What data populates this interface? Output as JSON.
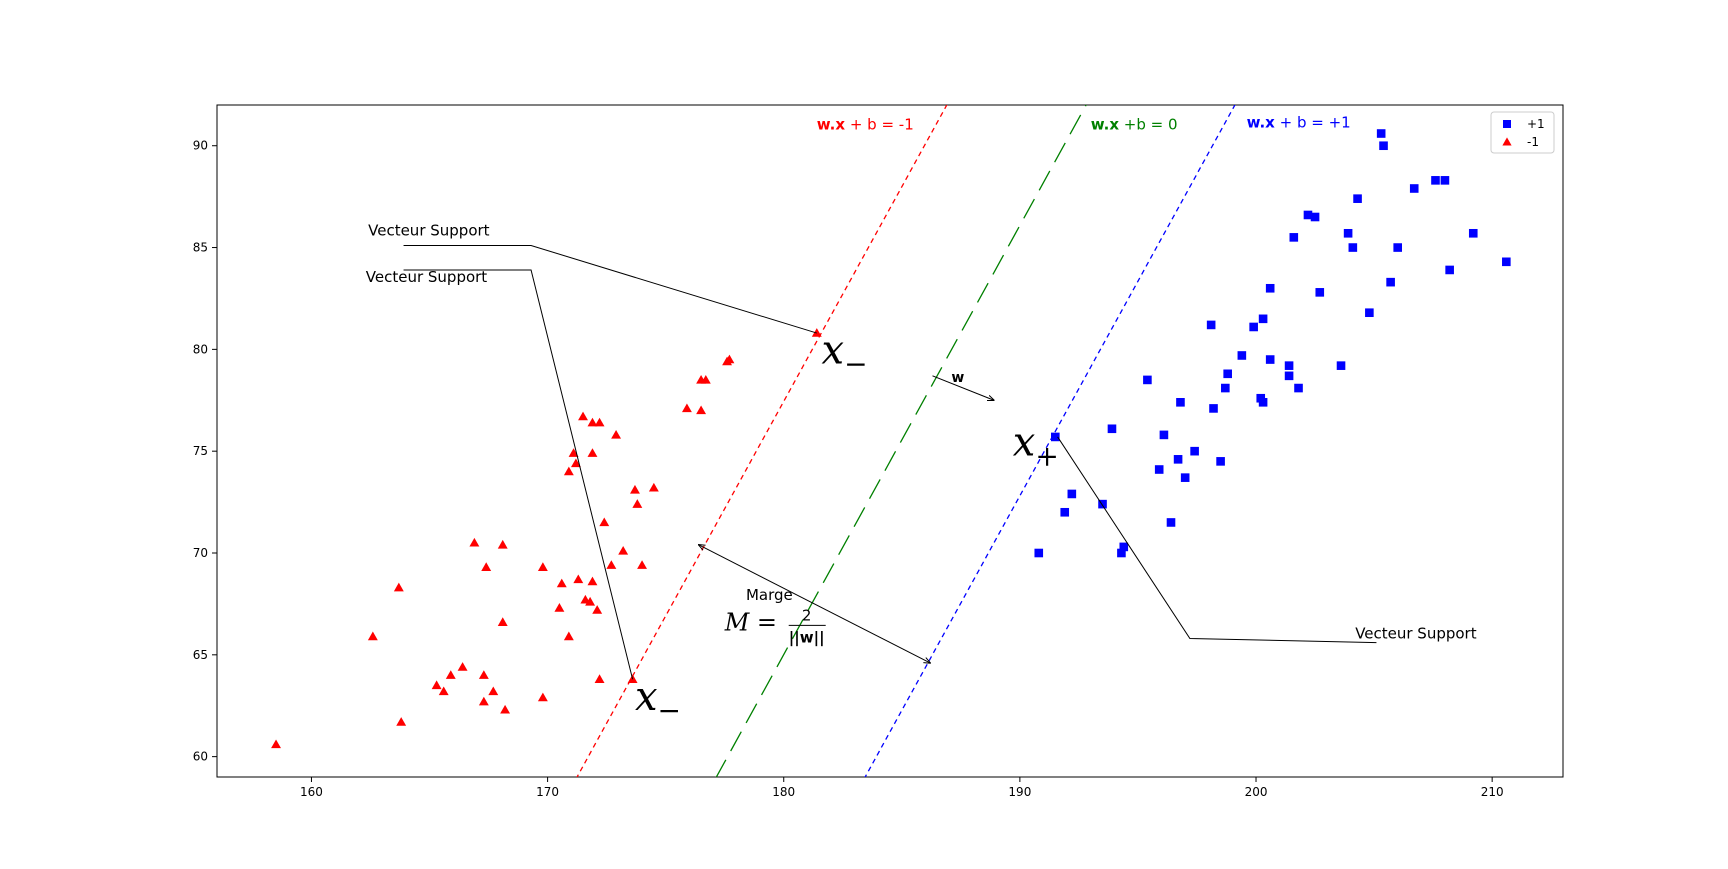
{
  "chart_data": {
    "type": "scatter",
    "title": "",
    "xlabel": "",
    "ylabel": "",
    "xlim": [
      156,
      213
    ],
    "ylim": [
      59,
      92
    ],
    "x_ticks": [
      160,
      170,
      180,
      190,
      200,
      210
    ],
    "y_ticks": [
      60,
      65,
      70,
      75,
      80,
      85,
      90
    ],
    "grid": false,
    "legend": {
      "placement": "top-right"
    },
    "series": [
      {
        "name": "+1",
        "marker": "square",
        "color": "#0000ff",
        "points": [
          [
            190.8,
            70.0
          ],
          [
            191.5,
            75.7
          ],
          [
            191.9,
            72.0
          ],
          [
            192.2,
            72.9
          ],
          [
            193.5,
            72.4
          ],
          [
            193.9,
            76.1
          ],
          [
            194.3,
            70.0
          ],
          [
            194.4,
            70.3
          ],
          [
            195.4,
            78.5
          ],
          [
            195.9,
            74.1
          ],
          [
            196.1,
            75.8
          ],
          [
            196.4,
            71.5
          ],
          [
            196.7,
            74.6
          ],
          [
            196.8,
            77.4
          ],
          [
            197.0,
            73.7
          ],
          [
            197.4,
            75.0
          ],
          [
            198.1,
            81.2
          ],
          [
            198.2,
            77.1
          ],
          [
            198.5,
            74.5
          ],
          [
            198.7,
            78.1
          ],
          [
            198.8,
            78.8
          ],
          [
            199.4,
            79.7
          ],
          [
            199.9,
            81.1
          ],
          [
            200.2,
            77.6
          ],
          [
            200.3,
            77.4
          ],
          [
            200.3,
            81.5
          ],
          [
            200.6,
            79.5
          ],
          [
            200.6,
            83.0
          ],
          [
            201.4,
            78.7
          ],
          [
            201.4,
            79.2
          ],
          [
            201.6,
            85.5
          ],
          [
            201.8,
            78.1
          ],
          [
            202.2,
            86.6
          ],
          [
            202.5,
            86.5
          ],
          [
            202.7,
            82.8
          ],
          [
            203.6,
            79.2
          ],
          [
            203.9,
            85.7
          ],
          [
            204.1,
            85.0
          ],
          [
            204.3,
            87.4
          ],
          [
            204.8,
            81.8
          ],
          [
            205.3,
            90.6
          ],
          [
            205.4,
            90.0
          ],
          [
            205.7,
            83.3
          ],
          [
            206.0,
            85.0
          ],
          [
            206.7,
            87.9
          ],
          [
            207.6,
            88.3
          ],
          [
            208.0,
            88.3
          ],
          [
            208.2,
            83.9
          ],
          [
            209.2,
            85.7
          ],
          [
            210.6,
            84.3
          ]
        ]
      },
      {
        "name": "-1",
        "marker": "triangle",
        "color": "#ff0000",
        "points": [
          [
            158.5,
            60.6
          ],
          [
            162.6,
            65.9
          ],
          [
            163.7,
            68.3
          ],
          [
            163.8,
            61.7
          ],
          [
            165.3,
            63.5
          ],
          [
            165.6,
            63.2
          ],
          [
            165.9,
            64.0
          ],
          [
            166.4,
            64.4
          ],
          [
            166.9,
            70.5
          ],
          [
            167.3,
            62.7
          ],
          [
            167.3,
            64.0
          ],
          [
            167.4,
            69.3
          ],
          [
            167.7,
            63.2
          ],
          [
            168.1,
            66.6
          ],
          [
            168.1,
            70.4
          ],
          [
            168.2,
            62.3
          ],
          [
            169.8,
            69.3
          ],
          [
            169.8,
            62.9
          ],
          [
            170.5,
            67.3
          ],
          [
            170.6,
            68.5
          ],
          [
            170.9,
            65.9
          ],
          [
            170.9,
            74.0
          ],
          [
            171.1,
            74.9
          ],
          [
            171.2,
            74.4
          ],
          [
            171.3,
            68.7
          ],
          [
            171.5,
            76.7
          ],
          [
            171.6,
            67.7
          ],
          [
            171.8,
            67.6
          ],
          [
            171.9,
            68.6
          ],
          [
            171.9,
            74.9
          ],
          [
            171.9,
            76.4
          ],
          [
            172.1,
            67.2
          ],
          [
            172.2,
            76.4
          ],
          [
            172.2,
            63.8
          ],
          [
            172.4,
            71.5
          ],
          [
            172.7,
            69.4
          ],
          [
            172.9,
            75.8
          ],
          [
            173.2,
            70.1
          ],
          [
            173.6,
            63.8
          ],
          [
            173.7,
            73.1
          ],
          [
            173.8,
            72.4
          ],
          [
            174.0,
            69.4
          ],
          [
            174.5,
            73.2
          ],
          [
            175.9,
            77.1
          ],
          [
            176.5,
            78.5
          ],
          [
            176.5,
            77.0
          ],
          [
            176.7,
            78.5
          ],
          [
            177.6,
            79.4
          ],
          [
            177.7,
            79.5
          ],
          [
            181.4,
            80.8
          ]
        ]
      }
    ],
    "lines": [
      {
        "name": "negative-margin",
        "color": "#ff0000",
        "style": "dashed-short",
        "from": [
          171.2,
          58.9
        ],
        "to": [
          187.0,
          92.2
        ]
      },
      {
        "name": "decision-boundary",
        "color": "#008000",
        "style": "dashed-long",
        "from": [
          177.1,
          58.9
        ],
        "to": [
          192.9,
          92.2
        ]
      },
      {
        "name": "positive-margin",
        "color": "#0000ff",
        "style": "dashed-short",
        "from": [
          183.4,
          58.9
        ],
        "to": [
          199.2,
          92.2
        ]
      }
    ],
    "line_labels": [
      {
        "bold": "w.x",
        "rest": " + b = -1",
        "color": "#ff0000",
        "at": [
          181.4,
          90.8
        ]
      },
      {
        "bold": "w.x",
        "rest": " +b = 0",
        "color": "#008000",
        "at": [
          193.0,
          90.8
        ]
      },
      {
        "bold": "w.x",
        "rest": " + b = +1",
        "color": "#0000ff",
        "at": [
          199.6,
          90.9
        ]
      }
    ],
    "annotations": [
      {
        "text": "Vecteur Support",
        "at": [
          162.4,
          85.6
        ],
        "path": [
          [
            163.9,
            85.1
          ],
          [
            169.3,
            85.1
          ],
          [
            181.4,
            80.8
          ]
        ]
      },
      {
        "text": "Vecteur Support",
        "at": [
          162.3,
          83.3
        ],
        "path": [
          [
            163.9,
            83.9
          ],
          [
            169.3,
            83.9
          ],
          [
            173.6,
            63.8
          ]
        ]
      },
      {
        "text": "Vecteur Support",
        "at": [
          204.2,
          65.8
        ],
        "path": [
          [
            205.1,
            65.6
          ],
          [
            197.2,
            65.8
          ],
          [
            191.6,
            75.7
          ]
        ]
      }
    ],
    "math_labels": [
      {
        "name": "x-minus-upper",
        "text": "x",
        "sub": "−",
        "at": [
          181.6,
          79.3
        ]
      },
      {
        "name": "x-minus-lower",
        "text": "x",
        "sub": "−",
        "at": [
          173.7,
          62.3
        ]
      },
      {
        "name": "x-plus",
        "text": "x",
        "sub": "+",
        "at": [
          189.7,
          74.8
        ]
      }
    ],
    "w_vector": {
      "label": "w",
      "from": [
        186.3,
        78.7
      ],
      "to": [
        188.9,
        77.5
      ],
      "label_at": [
        187.1,
        78.4
      ]
    },
    "margin_arrow": {
      "from": [
        176.4,
        70.4
      ],
      "to": [
        186.2,
        64.6
      ]
    },
    "margin_text": {
      "word": "Marge",
      "formula_lhs": "M = ",
      "numerator": "2",
      "denominator": "||w||",
      "word_at": [
        178.4,
        67.7
      ],
      "formula_at": [
        177.5,
        66.2
      ]
    }
  }
}
